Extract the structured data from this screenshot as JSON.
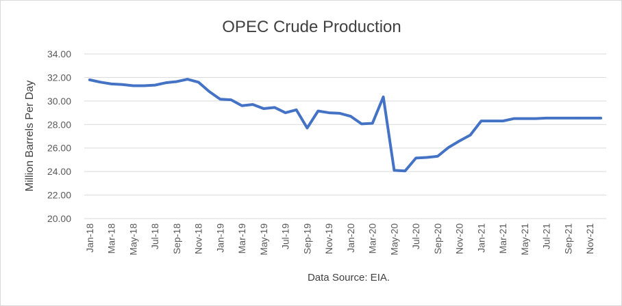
{
  "chart_data": {
    "type": "line",
    "title": "OPEC Crude  Production",
    "xlabel": "",
    "ylabel": "Million Barrels Per Day",
    "source_note": "Data Source: EIA.",
    "ylim": [
      20,
      34
    ],
    "y_ticks": [
      "20.00",
      "22.00",
      "24.00",
      "26.00",
      "28.00",
      "30.00",
      "32.00",
      "34.00"
    ],
    "grid": "horizontal",
    "legend": "none",
    "series_color": "#4472c4",
    "x": [
      "Jan-18",
      "Feb-18",
      "Mar-18",
      "Apr-18",
      "May-18",
      "Jun-18",
      "Jul-18",
      "Aug-18",
      "Sep-18",
      "Oct-18",
      "Nov-18",
      "Dec-18",
      "Jan-19",
      "Feb-19",
      "Mar-19",
      "Apr-19",
      "May-19",
      "Jun-19",
      "Jul-19",
      "Aug-19",
      "Sep-19",
      "Oct-19",
      "Nov-19",
      "Dec-19",
      "Jan-20",
      "Feb-20",
      "Mar-20",
      "Apr-20",
      "May-20",
      "Jun-20",
      "Jul-20",
      "Aug-20",
      "Sep-20",
      "Oct-20",
      "Nov-20",
      "Dec-20",
      "Jan-21",
      "Feb-21",
      "Mar-21",
      "Apr-21",
      "May-21",
      "Jun-21",
      "Jul-21",
      "Aug-21",
      "Sep-21",
      "Oct-21",
      "Nov-21",
      "Dec-21"
    ],
    "x_tick_labels": [
      "Jan-18",
      "Mar-18",
      "May-18",
      "Jul-18",
      "Sep-18",
      "Nov-18",
      "Jan-19",
      "Mar-19",
      "May-19",
      "Jul-19",
      "Sep-19",
      "Nov-19",
      "Jan-20",
      "Mar-20",
      "May-20",
      "Jul-20",
      "Sep-20",
      "Nov-20",
      "Jan-21",
      "Mar-21",
      "May-21",
      "Jul-21",
      "Sep-21",
      "Nov-21"
    ],
    "series": [
      {
        "values": [
          31.8,
          31.6,
          31.45,
          31.4,
          31.3,
          31.3,
          31.35,
          31.55,
          31.65,
          31.85,
          31.6,
          30.8,
          30.15,
          30.1,
          29.6,
          29.7,
          29.35,
          29.45,
          29.0,
          29.25,
          27.7,
          29.15,
          29.0,
          28.95,
          28.7,
          28.05,
          28.1,
          30.35,
          24.1,
          24.05,
          25.15,
          25.2,
          25.3,
          26.05,
          26.6,
          27.1,
          28.3,
          28.3,
          28.3,
          28.5,
          28.5,
          28.5,
          28.55,
          28.55,
          28.55,
          28.55,
          28.55,
          28.55
        ]
      }
    ]
  }
}
